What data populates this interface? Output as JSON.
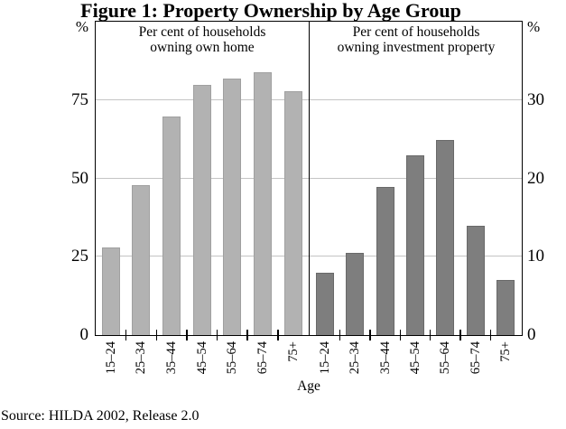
{
  "figure": {
    "title": "Figure 1: Property Ownership by Age Group",
    "x_axis_title": "Age",
    "left_unit": "%",
    "right_unit": "%",
    "source": "Source: HILDA 2002, Release 2.0"
  },
  "chart_data": [
    {
      "type": "bar",
      "panel": "left",
      "title_lines": [
        "Per cent of households",
        "owning own home"
      ],
      "categories": [
        "15–24",
        "25–34",
        "35–44",
        "45–54",
        "55–64",
        "65–74",
        "75+"
      ],
      "values": [
        28,
        48,
        70,
        80,
        82,
        84,
        78
      ],
      "xlabel": "Age",
      "ylabel": "%",
      "ylim": [
        0,
        100
      ],
      "yticks": [
        0,
        25,
        50,
        75
      ],
      "axis_side": "left",
      "grid": true,
      "bar_color": "#b2b2b2",
      "bar_border_color": "#a0a0a0"
    },
    {
      "type": "bar",
      "panel": "right",
      "title_lines": [
        "Per cent of households",
        "owning investment property"
      ],
      "categories": [
        "15–24",
        "25–34",
        "35–44",
        "45–54",
        "55–64",
        "65–74",
        "75+"
      ],
      "values": [
        8,
        10.5,
        19,
        23,
        25,
        14,
        7
      ],
      "xlabel": "Age",
      "ylabel": "%",
      "ylim": [
        0,
        40
      ],
      "yticks": [
        0,
        10,
        20,
        30
      ],
      "axis_side": "right",
      "grid": true,
      "bar_color": "#7e7e7e",
      "bar_border_color": "#696969"
    }
  ]
}
